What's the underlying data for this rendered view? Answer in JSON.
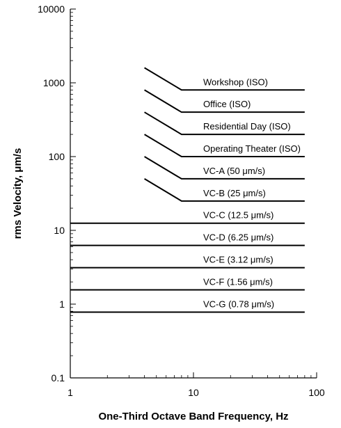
{
  "chart_data": {
    "type": "line",
    "xlabel": "One-Third Octave Band Frequency, Hz",
    "ylabel": "rms Velocity, μm/s",
    "x_scale": "log",
    "y_scale": "log",
    "xlim": [
      1,
      100
    ],
    "ylim": [
      0.1,
      10000
    ],
    "x_ticks": [
      "1",
      "10",
      "100"
    ],
    "y_ticks": [
      "0.1",
      "1",
      "10",
      "100",
      "1000",
      "10000"
    ],
    "grid": false,
    "series": [
      {
        "name": "Workshop (ISO)",
        "x": [
          4,
          8,
          80
        ],
        "y": [
          1600,
          800,
          800
        ]
      },
      {
        "name": "Office (ISO)",
        "x": [
          4,
          8,
          80
        ],
        "y": [
          800,
          400,
          400
        ]
      },
      {
        "name": "Residential Day (ISO)",
        "x": [
          4,
          8,
          80
        ],
        "y": [
          400,
          200,
          200
        ]
      },
      {
        "name": "Operating Theater (ISO)",
        "x": [
          4,
          8,
          80
        ],
        "y": [
          200,
          100,
          100
        ]
      },
      {
        "name": "VC-A (50 μm/s)",
        "x": [
          4,
          8,
          80
        ],
        "y": [
          100,
          50,
          50
        ]
      },
      {
        "name": "VC-B (25 μm/s)",
        "x": [
          4,
          8,
          80
        ],
        "y": [
          50,
          25,
          25
        ]
      },
      {
        "name": "VC-C (12.5 μm/s)",
        "x": [
          1,
          80
        ],
        "y": [
          12.5,
          12.5
        ]
      },
      {
        "name": "VC-D (6.25 μm/s)",
        "x": [
          1,
          80
        ],
        "y": [
          6.25,
          6.25
        ]
      },
      {
        "name": "VC-E (3.12 μm/s)",
        "x": [
          1,
          80
        ],
        "y": [
          3.12,
          3.12
        ]
      },
      {
        "name": "VC-F (1.56 μm/s)",
        "x": [
          1,
          80
        ],
        "y": [
          1.56,
          1.56
        ]
      },
      {
        "name": "VC-G (0.78 μm/s)",
        "x": [
          1,
          80
        ],
        "y": [
          0.78,
          0.78
        ]
      }
    ]
  }
}
